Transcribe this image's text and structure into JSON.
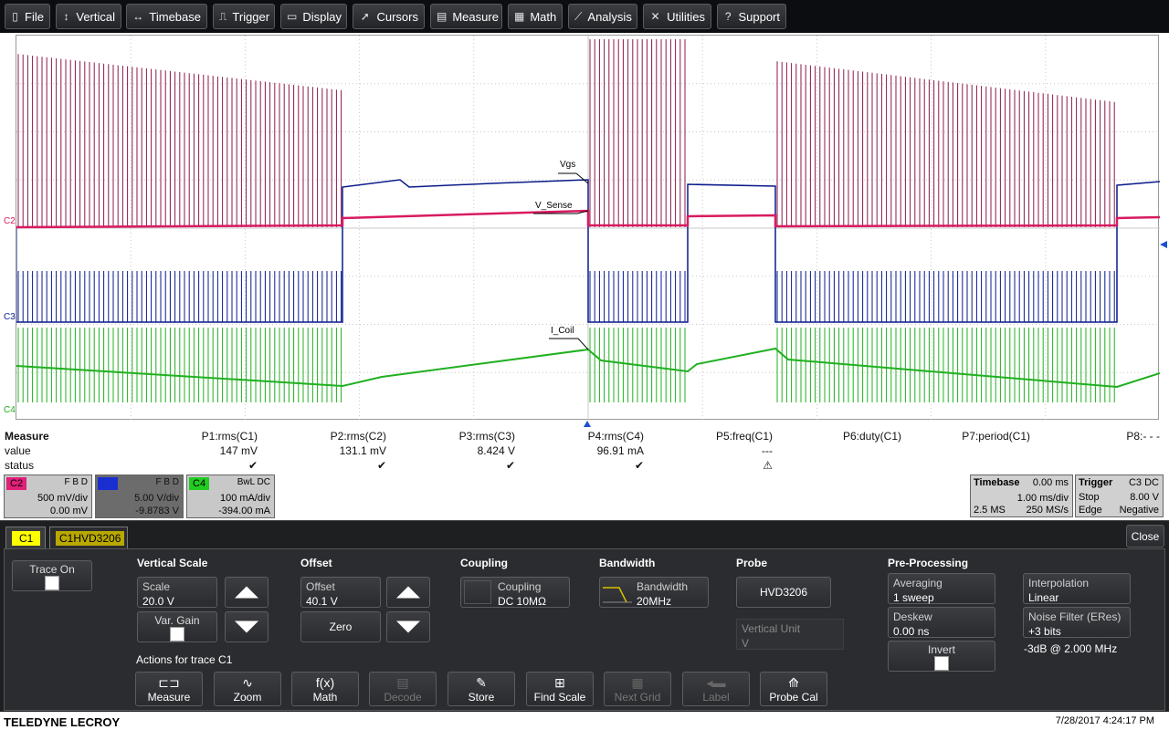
{
  "menu": [
    {
      "id": "file",
      "label": "File",
      "icon": "file-icon",
      "glyph": "▯"
    },
    {
      "id": "vertical",
      "label": "Vertical",
      "icon": "vertical-arrows-icon",
      "glyph": "↕"
    },
    {
      "id": "timebase",
      "label": "Timebase",
      "icon": "horizontal-arrows-icon",
      "glyph": "↔"
    },
    {
      "id": "trigger",
      "label": "Trigger",
      "icon": "trigger-icon",
      "glyph": "⎍"
    },
    {
      "id": "display",
      "label": "Display",
      "icon": "display-icon",
      "glyph": "▭"
    },
    {
      "id": "cursors",
      "label": "Cursors",
      "icon": "cursor-icon",
      "glyph": "➚"
    },
    {
      "id": "measure",
      "label": "Measure",
      "icon": "measure-icon",
      "glyph": "▤"
    },
    {
      "id": "math",
      "label": "Math",
      "icon": "calculator-icon",
      "glyph": "▦"
    },
    {
      "id": "analysis",
      "label": "Analysis",
      "icon": "analysis-icon",
      "glyph": "⟋"
    },
    {
      "id": "utilities",
      "label": "Utilities",
      "icon": "tools-icon",
      "glyph": "✕"
    },
    {
      "id": "support",
      "label": "Support",
      "icon": "help-icon",
      "glyph": "?"
    }
  ],
  "traces": {
    "labels": {
      "vgs": "Vgs",
      "vsense": "V_Sense",
      "icoil": "I_Coil"
    },
    "channel_markers": {
      "c2": "C2",
      "c3": "C3",
      "c4": "C4"
    },
    "colors": {
      "c1": "#8b1a4a",
      "c2": "#d81b60",
      "c3": "#0a1a8c",
      "c4": "#20b020"
    }
  },
  "measure": {
    "title": "Measure",
    "row_labels": {
      "value": "value",
      "status": "status"
    },
    "params": [
      {
        "name": "P1:rms(C1)",
        "value": "147 mV",
        "status": "✔"
      },
      {
        "name": "P2:rms(C2)",
        "value": "131.1 mV",
        "status": "✔"
      },
      {
        "name": "P3:rms(C3)",
        "value": "8.424 V",
        "status": "✔"
      },
      {
        "name": "P4:rms(C4)",
        "value": "96.91 mA",
        "status": "✔"
      },
      {
        "name": "P5:freq(C1)",
        "value": "---",
        "status": "⚠"
      },
      {
        "name": "P6:duty(C1)",
        "value": "",
        "status": ""
      },
      {
        "name": "P7:period(C1)",
        "value": "",
        "status": ""
      },
      {
        "name": "P8:- - -",
        "value": "",
        "status": ""
      }
    ]
  },
  "channels": [
    {
      "tag": "C2",
      "flags": "F B D",
      "v1": "500 mV/div",
      "v2": "0.00 mV",
      "color": "#e0207a",
      "text": "#000"
    },
    {
      "tag": "C3",
      "flags": "F B D",
      "v1": "5.00 V/div",
      "v2": "-9.8783 V",
      "color": "#1a2fd0",
      "text": "#1a2fd0"
    },
    {
      "tag": "C4",
      "flags": "BwL DC",
      "v1": "100 mA/div",
      "v2": "-394.00 mA",
      "color": "#22cc22",
      "text": "#000"
    }
  ],
  "timebase": {
    "title": "Timebase",
    "delay": "0.00 ms",
    "div": "1.00 ms/div",
    "samples": "2.5 MS",
    "rate": "250 MS/s"
  },
  "trigger": {
    "title": "Trigger",
    "src": "C3 DC",
    "mode": "Stop",
    "level": "8.00 V",
    "type": "Edge",
    "slope": "Negative"
  },
  "dialog": {
    "tabs": [
      "C1",
      "C1HVD3206"
    ],
    "close": "Close",
    "trace_on": "Trace On",
    "vertical_scale": {
      "title": "Vertical Scale",
      "scale_label": "Scale",
      "scale_value": "20.0 V",
      "var_gain": "Var. Gain"
    },
    "offset": {
      "title": "Offset",
      "label": "Offset",
      "value": "40.1 V",
      "zero": "Zero"
    },
    "coupling": {
      "title": "Coupling",
      "label": "Coupling",
      "value": "DC 10MΩ"
    },
    "bandwidth": {
      "title": "Bandwidth",
      "label": "Bandwidth",
      "value": "20MHz"
    },
    "probe": {
      "title": "Probe",
      "name": "HVD3206",
      "unit_label": "Vertical Unit",
      "unit_value": "V"
    },
    "preproc": {
      "title": "Pre-Processing",
      "avg_label": "Averaging",
      "avg_value": "1 sweep",
      "deskew_label": "Deskew",
      "deskew_value": "0.00 ns",
      "invert": "Invert",
      "interp_label": "Interpolation",
      "interp_value": "Linear",
      "noise_label": "Noise Filter (ERes)",
      "noise_value": "+3 bits",
      "cutoff": "-3dB @ 2.000 MHz"
    },
    "actions_title": "Actions for trace C1",
    "actions": [
      {
        "label": "Measure",
        "icon": "measure-ruler-icon",
        "glyph": "⊏⊐",
        "enabled": true
      },
      {
        "label": "Zoom",
        "icon": "zoom-wave-icon",
        "glyph": "∿",
        "enabled": true
      },
      {
        "label": "Math",
        "icon": "fx-icon",
        "glyph": "f(x)",
        "enabled": true
      },
      {
        "label": "Decode",
        "icon": "decode-icon",
        "glyph": "▤",
        "enabled": false
      },
      {
        "label": "Store",
        "icon": "store-icon",
        "glyph": "✎",
        "enabled": true
      },
      {
        "label": "Find Scale",
        "icon": "find-scale-icon",
        "glyph": "⊞",
        "enabled": true
      },
      {
        "label": "Next Grid",
        "icon": "next-grid-icon",
        "glyph": "▦",
        "enabled": false
      },
      {
        "label": "Label",
        "icon": "label-icon",
        "glyph": "◂▬",
        "enabled": false
      },
      {
        "label": "Probe Cal",
        "icon": "probe-cal-icon",
        "glyph": "⟰",
        "enabled": true
      }
    ]
  },
  "footer": {
    "brand": "TELEDYNE LECROY",
    "datetime": "7/28/2017 4:24:17 PM"
  }
}
